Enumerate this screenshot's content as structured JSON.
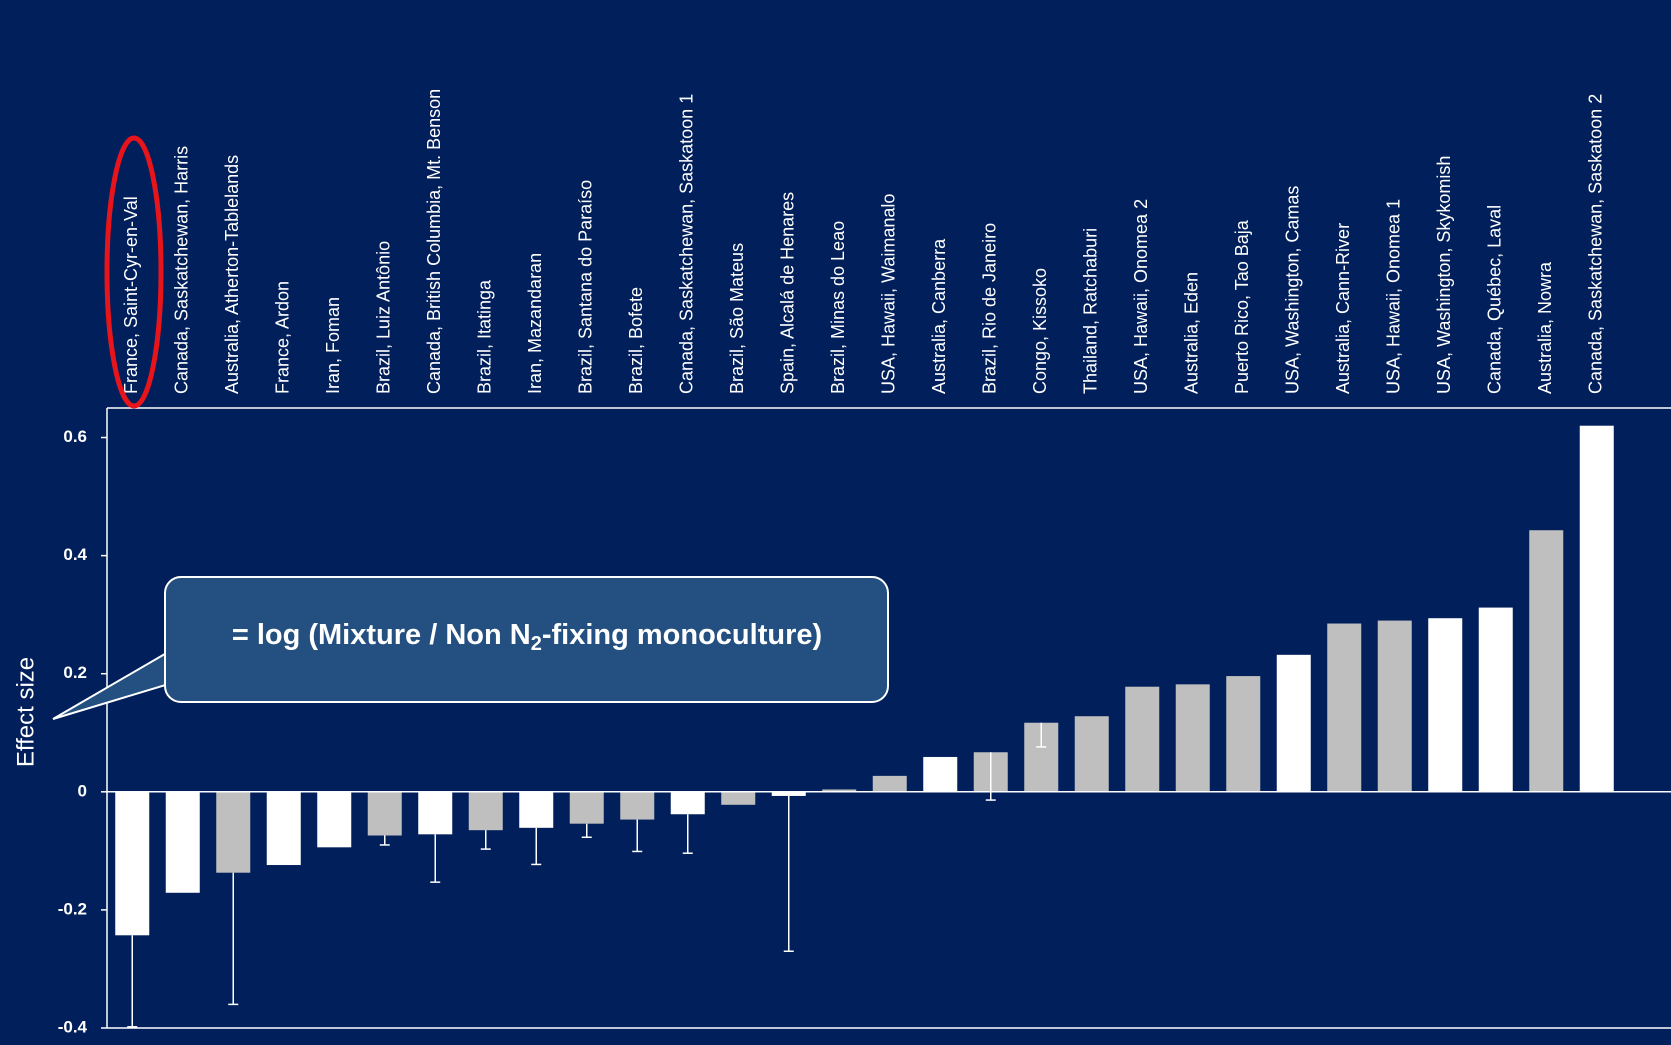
{
  "chart_data": {
    "type": "bar",
    "ylabel": "Effect size",
    "annotation": [
      "= log (Mixture / Non N",
      "2",
      "-fixing monoculture)"
    ],
    "categories": [
      "France, Saint-Cyr-en-Val",
      "Canada, Saskatchewan, Harris",
      "Australia, Atherton-Tablelands",
      "France, Ardon",
      "Iran, Foman",
      "Brazil, Luiz Antônio",
      "Canada, British Columbia, Mt. Benson",
      "Brazil, Itatinga",
      "Iran, Mazandaran",
      "Brazil, Santana do Paraíso",
      "Brazil, Bofete",
      "Canada, Saskatchewan, Saskatoon 1",
      "Brazil, São Mateus",
      "Spain, Alcalá de Henares",
      "Brazil, Minas do Leao",
      "USA, Hawaii, Waimanalo",
      "Australia, Canberra",
      "Brazil, Rio de Janeiro",
      "Congo, Kissoko",
      "Thailand, Ratchaburi",
      "USA, Hawaii, Onomea 2",
      "Australia, Eden",
      "Puerto Rico, Tao Baja",
      "USA, Washington, Camas",
      "Australia, Cann-River",
      "USA, Hawaii, Onomea 1",
      "USA, Washington, Skykomish",
      "Canada, Québec, Laval",
      "Australia, Nowra",
      "Canada, Saskatchewan, Saskatoon 2"
    ],
    "values": [
      -0.243,
      -0.171,
      -0.137,
      -0.124,
      -0.094,
      -0.074,
      -0.072,
      -0.065,
      -0.061,
      -0.054,
      -0.047,
      -0.038,
      -0.022,
      -0.007,
      0.004,
      0.027,
      0.059,
      0.067,
      0.117,
      0.128,
      0.178,
      0.182,
      0.196,
      0.232,
      0.285,
      0.29,
      0.294,
      0.312,
      0.443,
      0.62
    ],
    "errors": [
      0.155,
      null,
      0.223,
      null,
      null,
      0.016,
      0.081,
      0.032,
      0.062,
      0.023,
      0.054,
      0.066,
      null,
      0.263,
      null,
      null,
      null,
      0.081,
      0.041,
      null,
      null,
      null,
      null,
      null,
      null,
      null,
      null,
      null,
      null,
      null
    ],
    "colors": [
      "#ffffff",
      "#ffffff",
      "#bfbfbf",
      "#ffffff",
      "#ffffff",
      "#bfbfbf",
      "#ffffff",
      "#bfbfbf",
      "#ffffff",
      "#bfbfbf",
      "#bfbfbf",
      "#ffffff",
      "#bfbfbf",
      "#ffffff",
      "#bfbfbf",
      "#bfbfbf",
      "#ffffff",
      "#bfbfbf",
      "#bfbfbf",
      "#bfbfbf",
      "#bfbfbf",
      "#bfbfbf",
      "#bfbfbf",
      "#ffffff",
      "#bfbfbf",
      "#bfbfbf",
      "#ffffff",
      "#ffffff",
      "#bfbfbf",
      "#ffffff"
    ],
    "ylim": [
      -0.4,
      0.65
    ],
    "yticks": [
      -0.4,
      -0.2,
      0,
      0.2,
      0.4,
      0.6
    ]
  }
}
